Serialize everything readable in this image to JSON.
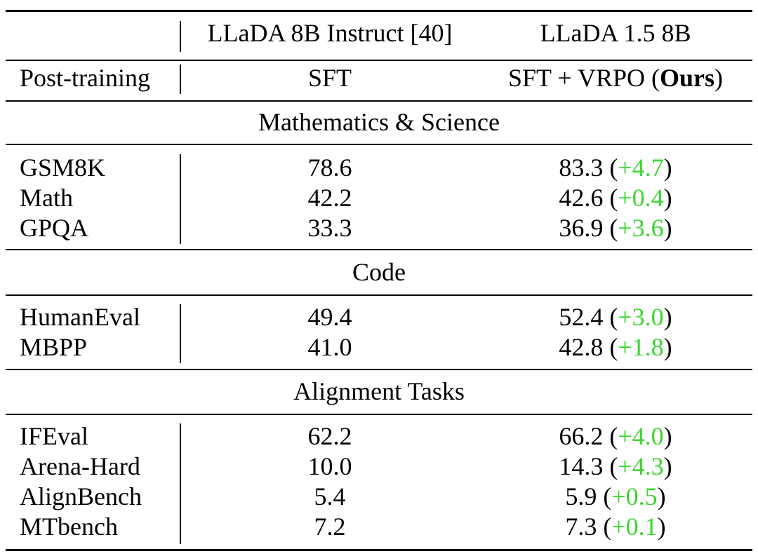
{
  "header": {
    "model_a": "LLaDA 8B Instruct [40]",
    "model_b": "LLaDA 1.5 8B",
    "row_label": "Post-training",
    "method_a": "SFT",
    "method_b_prefix": "SFT + VRPO (",
    "method_b_bold": "Ours",
    "method_b_suffix": ")"
  },
  "sections": [
    {
      "title": "Mathematics & Science",
      "rows": [
        {
          "task": "GSM8K",
          "a": "78.6",
          "b": "83.3",
          "delta": "+4.7"
        },
        {
          "task": "Math",
          "a": "42.2",
          "b": "42.6",
          "delta": "+0.4"
        },
        {
          "task": "GPQA",
          "a": "33.3",
          "b": "36.9",
          "delta": "+3.6"
        }
      ]
    },
    {
      "title": "Code",
      "rows": [
        {
          "task": "HumanEval",
          "a": "49.4",
          "b": "52.4",
          "delta": "+3.0"
        },
        {
          "task": "MBPP",
          "a": "41.0",
          "b": "42.8",
          "delta": "+1.8"
        }
      ]
    },
    {
      "title": "Alignment Tasks",
      "rows": [
        {
          "task": "IFEval",
          "a": "62.2",
          "b": "66.2",
          "delta": "+4.0"
        },
        {
          "task": "Arena-Hard",
          "a": "10.0",
          "b": "14.3",
          "delta": "+4.3"
        },
        {
          "task": "AlignBench",
          "a": "5.4",
          "b": "5.9",
          "delta": "+0.5"
        },
        {
          "task": "MTbench",
          "a": "7.2",
          "b": "7.3",
          "delta": "+0.1"
        }
      ]
    }
  ],
  "colors": {
    "delta": "#3bd62f",
    "text": "#000000"
  }
}
